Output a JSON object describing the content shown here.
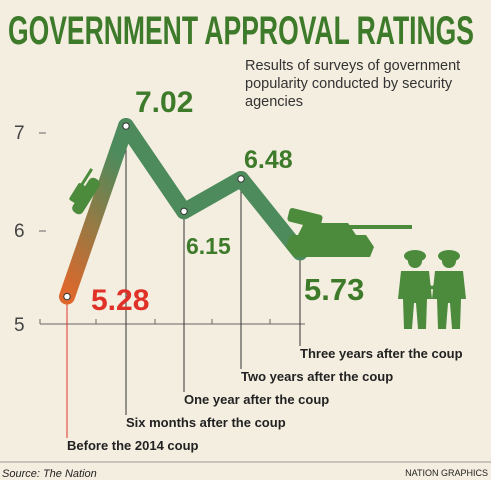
{
  "chart_data": {
    "type": "line",
    "title": "GOVERNMENT APPROVAL RATINGS",
    "subtitle_lines": [
      "Results of surveys of government",
      "popularity conducted by security",
      "agencies"
    ],
    "categories": [
      "Before the 2014 coup",
      "Six months after the coup",
      "One year after the coup",
      "Two years after the coup",
      "Three years after the coup"
    ],
    "values": [
      5.28,
      7.02,
      6.15,
      6.48,
      5.73
    ],
    "value_labels": [
      "5.28",
      "7.02",
      "6.15",
      "6.48",
      "5.73"
    ],
    "y_ticks": [
      "7",
      "6",
      "5"
    ],
    "ylim": [
      5,
      7
    ],
    "grid": false,
    "source": "Source: The Nation",
    "credit": "NATION GRAPHICS",
    "colors": {
      "line": "#4e8b5c",
      "line_start": "#e0672b",
      "title": "#3d7a2a",
      "highlight": "#e03129",
      "value": "#3d7a2a",
      "silhouette": "#4c8a3c"
    },
    "icons": [
      "tank-icon",
      "tank-icon",
      "soldiers-icon"
    ]
  }
}
